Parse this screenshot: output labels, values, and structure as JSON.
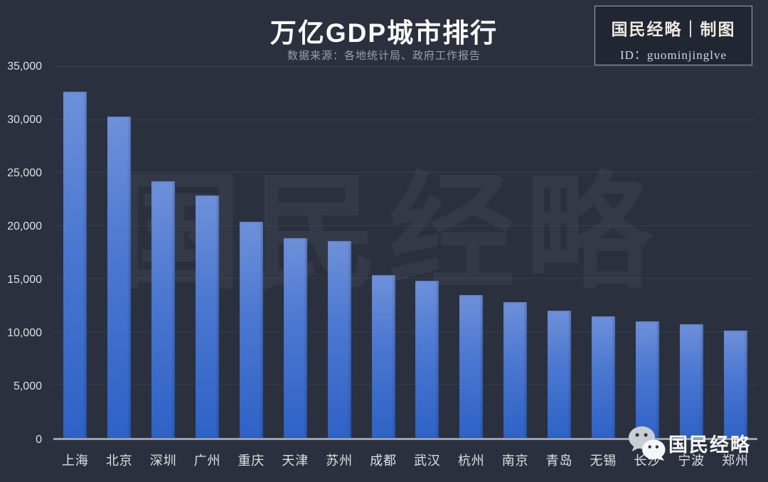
{
  "page": {
    "title": "万亿GDP城市排行",
    "subtitle": "数据来源：各地统计局、政府工作报告"
  },
  "brand_box": {
    "line1": "国民经略｜制图",
    "line2": "ID：guominjinglve"
  },
  "watermark_text": "国民经略",
  "footer": {
    "brand": "国民经略",
    "icon": "wechat-icon"
  },
  "colors": {
    "background": "#2a303e",
    "bar_gradient_top": "#6e90da",
    "bar_gradient_bottom": "#2e62c6",
    "axis_line": "#9ba2ac",
    "tick_text": "#dce0e6",
    "subtitle_text": "#99a1ac",
    "title_text": "#ffffff"
  },
  "chart_data": {
    "type": "bar",
    "title": "万亿GDP城市排行",
    "subtitle": "数据来源：各地统计局、政府工作报告",
    "categories": [
      "上海",
      "北京",
      "深圳",
      "广州",
      "重庆",
      "天津",
      "苏州",
      "成都",
      "武汉",
      "杭州",
      "南京",
      "青岛",
      "无锡",
      "长沙",
      "宁波",
      "郑州"
    ],
    "values": [
      32680,
      30320,
      24220,
      22860,
      20360,
      18810,
      18600,
      15340,
      14850,
      13510,
      12820,
      12000,
      11440,
      11000,
      10750,
      10140
    ],
    "xlabel": "",
    "ylabel": "",
    "ylim": [
      0,
      35000
    ],
    "ytick_interval": 5000,
    "ytick_labels": [
      "0",
      "5,000",
      "10,000",
      "15,000",
      "20,000",
      "25,000",
      "30,000",
      "35,000"
    ],
    "grid": true,
    "legend": false
  }
}
